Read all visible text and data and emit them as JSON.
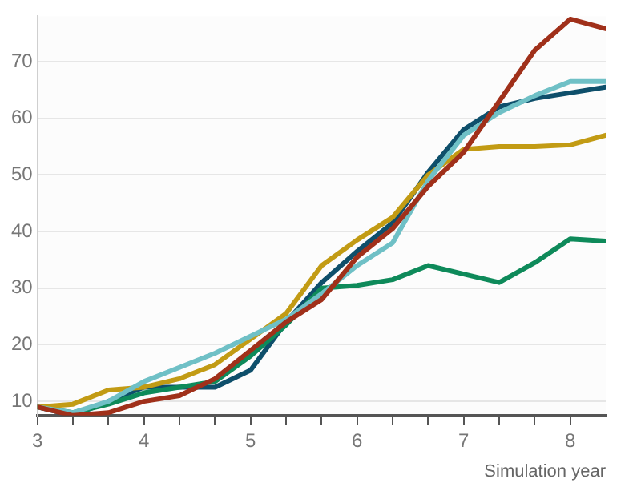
{
  "chart_data": {
    "type": "line",
    "xlabel": "Simulation year",
    "x": [
      3,
      3.333,
      3.667,
      4,
      4.333,
      4.667,
      5,
      5.333,
      5.667,
      6,
      6.333,
      6.667,
      7,
      7.333,
      7.667,
      8,
      8.333
    ],
    "series": [
      {
        "color": "#a0301a",
        "values": [
          9,
          7.5,
          8,
          10,
          11,
          14,
          19,
          24,
          28,
          35.5,
          40.5,
          48,
          54,
          63,
          72,
          77.5,
          75.8
        ]
      },
      {
        "color": "#6fc0c6",
        "values": [
          9,
          8,
          10,
          13.5,
          16,
          18.5,
          21.5,
          24.5,
          29,
          34,
          38,
          49,
          57,
          61,
          64,
          66.5,
          66.5
        ]
      },
      {
        "color": "#c29b14",
        "values": [
          9,
          9.5,
          12,
          12.5,
          14,
          16.5,
          21,
          25.5,
          34,
          38.5,
          42.5,
          50,
          54.5,
          55,
          55,
          55.3,
          57
        ]
      },
      {
        "color": "#0e8a5a",
        "values": [
          9,
          8,
          9.5,
          11.5,
          12.5,
          13.5,
          18,
          23.5,
          30,
          30.5,
          31.5,
          34,
          32.5,
          31,
          34.5,
          38.7,
          38.3
        ]
      },
      {
        "color": "#0e4f6b",
        "values": [
          9,
          7.5,
          10,
          12.5,
          12.5,
          12.5,
          15.5,
          24,
          31,
          36.5,
          41.5,
          50.5,
          58,
          62,
          63.5,
          64.5,
          65.5
        ]
      }
    ],
    "xlim": [
      3,
      8.333
    ],
    "xticks": [
      3,
      {
        "value": 3.333,
        "label": null
      },
      {
        "value": 3.667,
        "label": null
      },
      4,
      {
        "value": 4.333,
        "label": null
      },
      {
        "value": 4.667,
        "label": null
      },
      5,
      {
        "value": 5.333,
        "label": null
      },
      {
        "value": 5.667,
        "label": null
      },
      6,
      {
        "value": 6.333,
        "label": null
      },
      {
        "value": 6.667,
        "label": null
      },
      7,
      {
        "value": 7.333,
        "label": null
      },
      {
        "value": 7.667,
        "label": null
      },
      8
    ],
    "ylim": [
      7.5,
      78
    ],
    "yticks": [
      10,
      20,
      30,
      40,
      50,
      60,
      70
    ],
    "grid": "y",
    "legend": false,
    "marker": "none",
    "line_style": "solid"
  }
}
